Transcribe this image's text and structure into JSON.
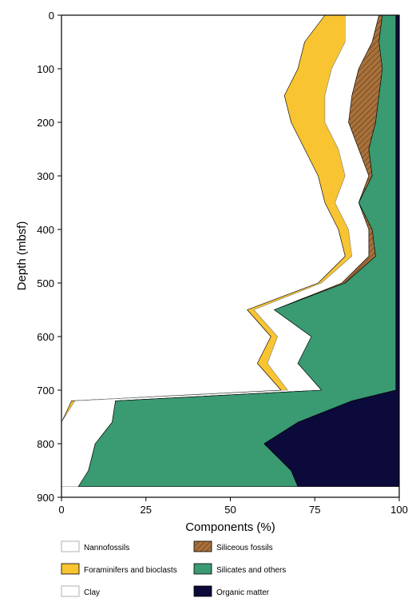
{
  "chart_data": {
    "type": "area",
    "orientation": "horizontal-stacked",
    "xlabel": "Components (%)",
    "ylabel": "Depth (mbsf)",
    "xlim": [
      0,
      100
    ],
    "ylim": [
      0,
      900
    ],
    "x_ticks": [
      0,
      25,
      50,
      75,
      100
    ],
    "y_ticks": [
      0,
      100,
      200,
      300,
      400,
      500,
      600,
      700,
      800,
      900
    ],
    "y_inverted": true,
    "grid": false,
    "legend_position": "bottom",
    "depth": [
      0,
      50,
      100,
      150,
      200,
      250,
      300,
      350,
      400,
      450,
      500,
      550,
      600,
      650,
      700,
      720,
      760,
      800,
      850,
      880
    ],
    "series": [
      {
        "name": "Nannofossils",
        "color": "#ffffff",
        "pattern": "none",
        "values": [
          78,
          72,
          70,
          66,
          68,
          72,
          76,
          78,
          82,
          84,
          76,
          55,
          62,
          58,
          65,
          3,
          0,
          0,
          0,
          0
        ]
      },
      {
        "name": "Foraminifers and bioclasts",
        "color": "#f9c431",
        "pattern": "none",
        "values": [
          6,
          12,
          10,
          12,
          10,
          10,
          8,
          3,
          3,
          2,
          1,
          2,
          2,
          3,
          2,
          1,
          0,
          0,
          0,
          0
        ]
      },
      {
        "name": "Clay",
        "color": "#ffffff",
        "pattern": "none",
        "values": [
          10,
          8,
          8,
          8,
          7,
          6,
          7,
          7,
          6,
          5,
          6,
          6,
          10,
          9,
          10,
          12,
          15,
          10,
          8,
          5
        ]
      },
      {
        "name": "Siliceous fossils",
        "color": "#a8713c",
        "pattern": "hatch",
        "values": [
          1,
          2,
          7,
          8,
          8,
          3,
          1,
          0,
          1,
          2,
          1,
          0,
          0,
          0,
          0,
          0,
          0,
          0,
          0,
          0
        ]
      },
      {
        "name": "Silicates and others",
        "color": "#3a9a72",
        "pattern": "none",
        "values": [
          4,
          5,
          4,
          5,
          6,
          8,
          7,
          11,
          7,
          6,
          15,
          36,
          25,
          29,
          22,
          70,
          55,
          50,
          60,
          65
        ]
      },
      {
        "name": "Organic matter",
        "color": "#0b0a3a",
        "pattern": "none",
        "values": [
          1,
          1,
          1,
          1,
          1,
          1,
          1,
          1,
          1,
          1,
          1,
          1,
          1,
          1,
          1,
          14,
          30,
          40,
          32,
          30
        ]
      }
    ]
  }
}
